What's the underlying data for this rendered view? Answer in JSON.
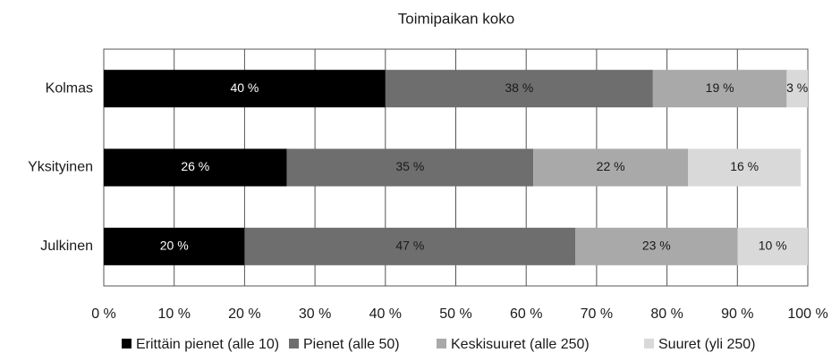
{
  "chart_data": {
    "type": "bar",
    "horizontal": true,
    "stacked": true,
    "title": "Toimipaikan koko",
    "categories": [
      "Kolmas",
      "Yksityinen",
      "Julkinen"
    ],
    "series": [
      {
        "name": "Erittäin pienet (alle 10)",
        "color": "#000000",
        "label_color": "#ffffff",
        "values": [
          40,
          26,
          20
        ],
        "value_labels": [
          "40 %",
          "26 %",
          "20 %"
        ]
      },
      {
        "name": "Pienet (alle 50)",
        "color": "#6e6e6e",
        "label_color": "#1a1a1a",
        "values": [
          38,
          35,
          47
        ],
        "value_labels": [
          "38 %",
          "35 %",
          "47 %"
        ]
      },
      {
        "name": "Keskisuuret (alle 250)",
        "color": "#a9a9a9",
        "label_color": "#1a1a1a",
        "values": [
          19,
          22,
          23
        ],
        "value_labels": [
          "19 %",
          "22 %",
          "23 %"
        ]
      },
      {
        "name": "Suuret (yli 250)",
        "color": "#d9d9d9",
        "label_color": "#1a1a1a",
        "values": [
          3,
          16,
          10
        ],
        "value_labels": [
          "3 %",
          "16 %",
          "10 %"
        ]
      }
    ],
    "xlim": [
      0,
      100
    ],
    "xticks": [
      {
        "value": 0,
        "label": "0 %"
      },
      {
        "value": 10,
        "label": "10 %"
      },
      {
        "value": 20,
        "label": "20 %"
      },
      {
        "value": 30,
        "label": "30 %"
      },
      {
        "value": 40,
        "label": "40 %"
      },
      {
        "value": 50,
        "label": "50 %"
      },
      {
        "value": 60,
        "label": "60 %"
      },
      {
        "value": 70,
        "label": "70 %"
      },
      {
        "value": 80,
        "label": "80 %"
      },
      {
        "value": 90,
        "label": "90 %"
      },
      {
        "value": 100,
        "label": "100 %"
      }
    ],
    "grid": true,
    "legend": "bottom"
  }
}
